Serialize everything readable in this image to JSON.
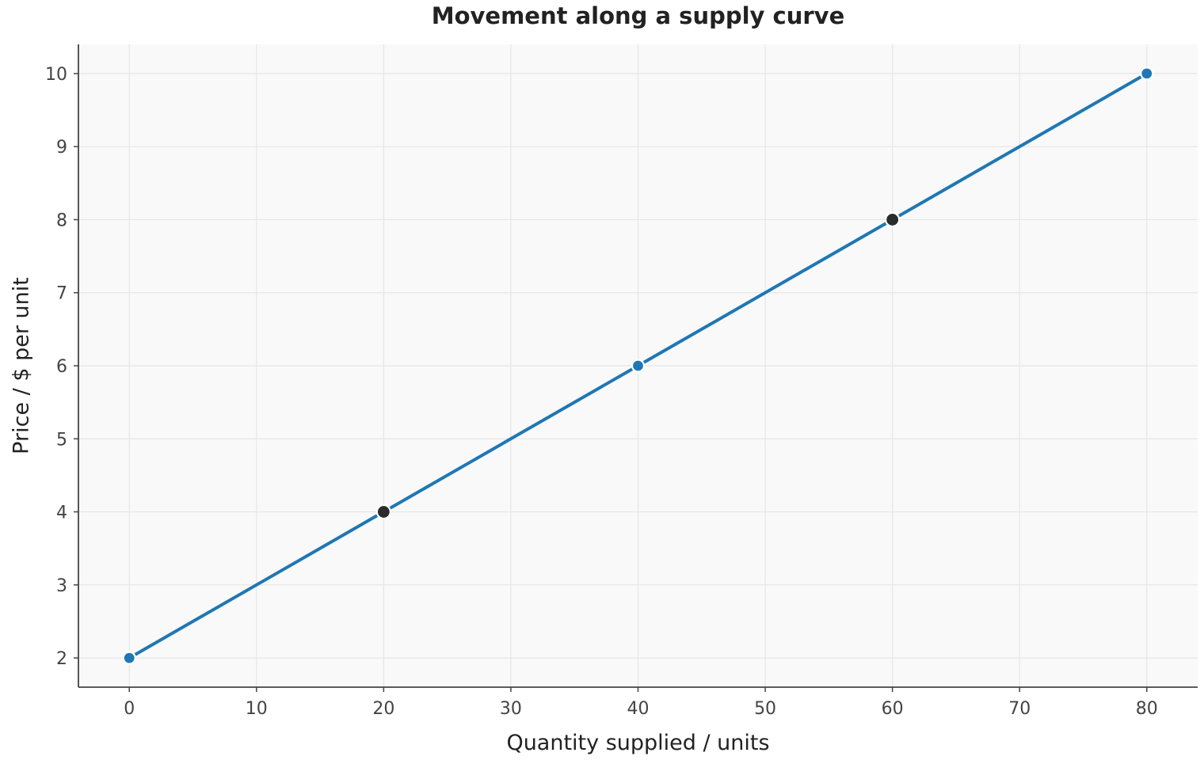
{
  "chart_data": {
    "type": "line",
    "title": "Movement along a supply curve",
    "xlabel": "Quantity supplied / units",
    "ylabel": "Price / $ per unit",
    "xlim": [
      -4,
      84
    ],
    "ylim": [
      1.6,
      10.4
    ],
    "x_ticks": [
      0,
      10,
      20,
      30,
      40,
      50,
      60,
      70,
      80
    ],
    "y_ticks": [
      2,
      3,
      4,
      5,
      6,
      7,
      8,
      9,
      10
    ],
    "grid": true,
    "series": [
      {
        "x": [
          0,
          20,
          40,
          60,
          80
        ],
        "y": [
          2,
          4,
          6,
          8,
          10
        ],
        "color": "#1f77b4"
      }
    ],
    "highlighted_points": [
      {
        "x": 20,
        "y": 4
      },
      {
        "x": 60,
        "y": 8
      }
    ],
    "colors": {
      "line": "#1f77b4",
      "marker": "#1f77b4",
      "highlight": "#2b2b2b",
      "plot_background": "#f9f9f9"
    }
  }
}
